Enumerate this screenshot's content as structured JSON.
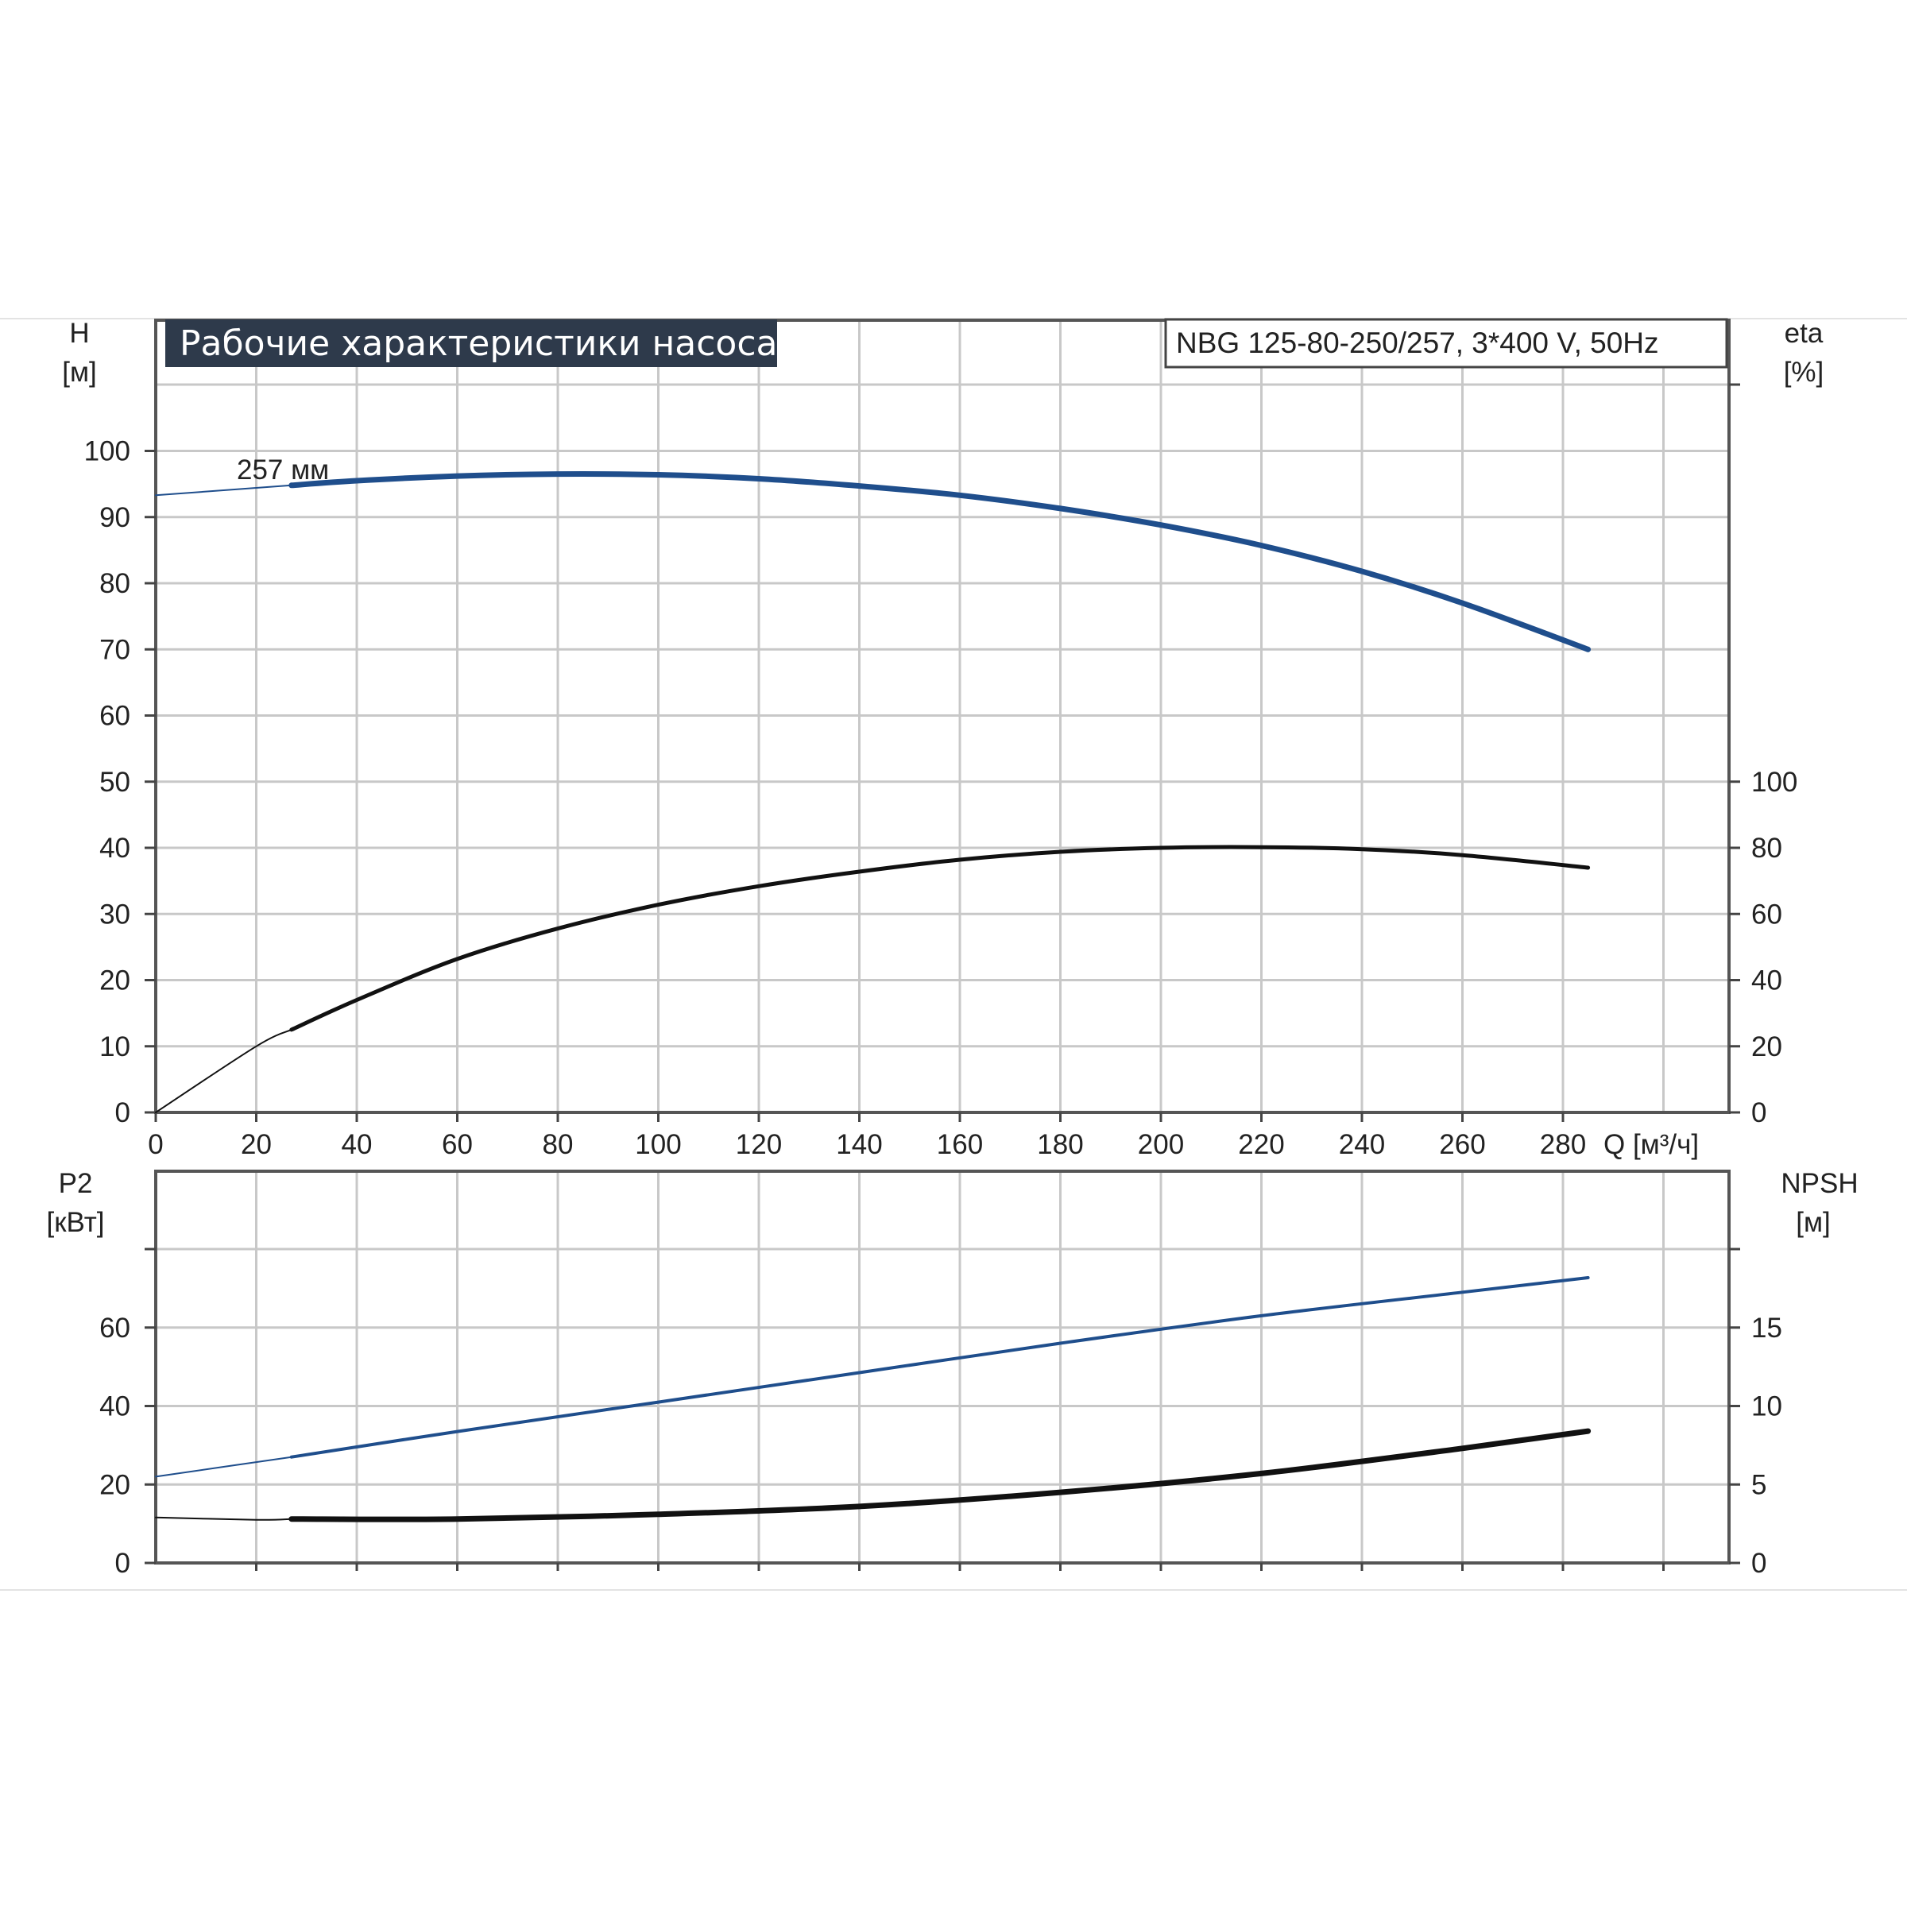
{
  "chart_data": [
    {
      "type": "line",
      "title": "Рабочие характеристики насоса",
      "model": "NBG 125-80-250/257, 3*400 V, 50Hz",
      "xlabel": "Q [м³/ч]",
      "xlim": [
        0,
        313
      ],
      "xticks": [
        "0",
        "20",
        "40",
        "60",
        "80",
        "100",
        "120",
        "140",
        "160",
        "180",
        "200",
        "220",
        "240",
        "260",
        "280"
      ],
      "ylabel_left": [
        "H",
        "[м]"
      ],
      "ylim_left": [
        0,
        100
      ],
      "yticks_left": [
        "0",
        "10",
        "20",
        "30",
        "40",
        "50",
        "60",
        "70",
        "80",
        "90",
        "100"
      ],
      "ylabel_right": [
        "eta",
        "[%]"
      ],
      "ylim_right": [
        0,
        100
      ],
      "yticks_right": [
        "0",
        "20",
        "40",
        "60",
        "80",
        "100"
      ],
      "grid": true,
      "series": [
        {
          "name": "257 мм",
          "axis": "left",
          "color": "#1f4e8c",
          "x": [
            0,
            27,
            40,
            60,
            80,
            100,
            120,
            140,
            160,
            180,
            200,
            220,
            240,
            260,
            285
          ],
          "y": [
            93.3,
            94.8,
            95.5,
            96.2,
            96.5,
            96.4,
            95.8,
            94.7,
            93.3,
            91.3,
            88.8,
            85.7,
            81.8,
            77.0,
            70.0
          ]
        },
        {
          "axis": "right",
          "color": "#111111",
          "x": [
            0,
            20,
            27,
            40,
            60,
            80,
            100,
            120,
            140,
            160,
            180,
            200,
            220,
            240,
            260,
            285
          ],
          "y": [
            0,
            20.0,
            25.0,
            34.0,
            46.4,
            55.6,
            62.8,
            68.4,
            72.8,
            76.4,
            78.8,
            80.0,
            80.2,
            79.6,
            77.8,
            74.0
          ]
        }
      ]
    },
    {
      "type": "line",
      "xlim": [
        0,
        313
      ],
      "ylabel_left": [
        "P2",
        "[кВт]"
      ],
      "ylim_left": [
        0,
        80
      ],
      "yticks_left": [
        "0",
        "20",
        "40",
        "60"
      ],
      "ylabel_right": [
        "NPSH",
        "[м]"
      ],
      "ylim_right": [
        0,
        20
      ],
      "yticks_right": [
        "0",
        "5",
        "10",
        "15"
      ],
      "grid": true,
      "series": [
        {
          "axis": "left",
          "color": "#1f4e8c",
          "x": [
            0,
            27,
            60,
            100,
            140,
            180,
            220,
            260,
            285
          ],
          "y": [
            22.0,
            27.0,
            33.5,
            41.0,
            48.5,
            56.0,
            63.0,
            69.0,
            72.7
          ]
        },
        {
          "axis": "right",
          "color": "#111111",
          "x": [
            0,
            20,
            27,
            60,
            100,
            140,
            180,
            220,
            260,
            285
          ],
          "y": [
            2.9,
            2.75,
            2.8,
            2.8,
            3.1,
            3.6,
            4.5,
            5.7,
            7.3,
            8.4
          ]
        }
      ]
    }
  ]
}
